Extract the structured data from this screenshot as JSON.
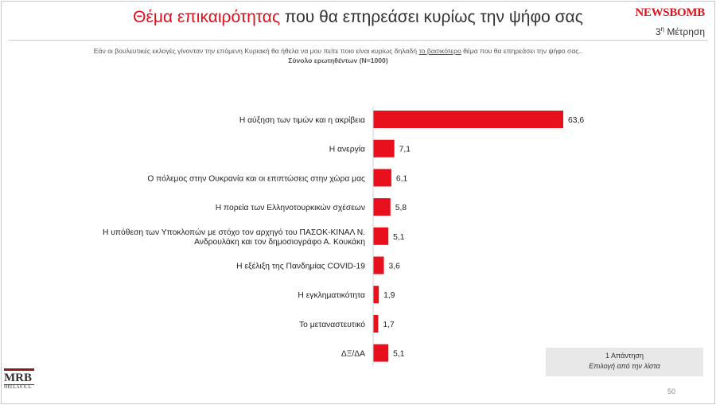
{
  "header": {
    "title_highlight": "Θέμα επικαιρότητας",
    "title_rest": " που θα επηρεάσει κυρίως την ψήφο σας",
    "logo_text": "NEWSBOMB",
    "measure_num": "3",
    "measure_sup": "η",
    "measure_text": " Μέτρηση"
  },
  "question": {
    "text_before": "Εάν οι βουλευτικές εκλογές γίνονταν την επόμενη Κυριακή θα ήθελα να μου πείτε ποιο είναι κυρίως δηλαδή ",
    "text_underlined": "το βασικότερο",
    "text_after": " θέμα που θα επηρεάσει την ψήφο σας..",
    "sample": "Σύνολο ερωτηθέντων (N=1000)"
  },
  "chart_data": {
    "type": "bar",
    "orientation": "horizontal",
    "categories": [
      [
        "Η αύξηση των τιμών και η ακρίβεια"
      ],
      [
        "Η ανεργία"
      ],
      [
        "Ο πόλεμος στην Ουκρανία και οι επιπτώσεις στην χώρα μας"
      ],
      [
        "Η πορεία των Ελληνοτουρκικών σχέσεων"
      ],
      [
        "Η υπόθεση των Υποκλοπών με στόχο τον αρχηγό του ΠΑΣΟΚ-ΚΙΝΑΛ Ν.",
        "Ανδρουλάκη και τον δημοσιογράφο Α. Κουκάκη"
      ],
      [
        "Η εξέλιξη της Πανδημίας COVID-19"
      ],
      [
        "Η εγκληματικότητα"
      ],
      [
        "Το μεταναστευτικό"
      ],
      [
        "ΔΞ/ΔΑ"
      ]
    ],
    "values": [
      63.6,
      7.1,
      6.1,
      5.8,
      5.1,
      3.6,
      1.9,
      1.7,
      5.1
    ],
    "value_labels": [
      "63,6",
      "7,1",
      "6,1",
      "5,8",
      "5,1",
      "3,6",
      "1,9",
      "1,7",
      "5,1"
    ],
    "xlim": [
      0,
      63.6
    ],
    "bar_color": "#e8101d",
    "title": "Θέμα επικαιρότητας που θα επηρεάσει κυρίως την ψήφο σας"
  },
  "note": {
    "line1": "1 Απάντηση",
    "line2": "Επιλογή από την λίστα"
  },
  "footer": {
    "brand": "MRB",
    "brand_sub": "HELLAS S.A.",
    "page_number": "50"
  }
}
